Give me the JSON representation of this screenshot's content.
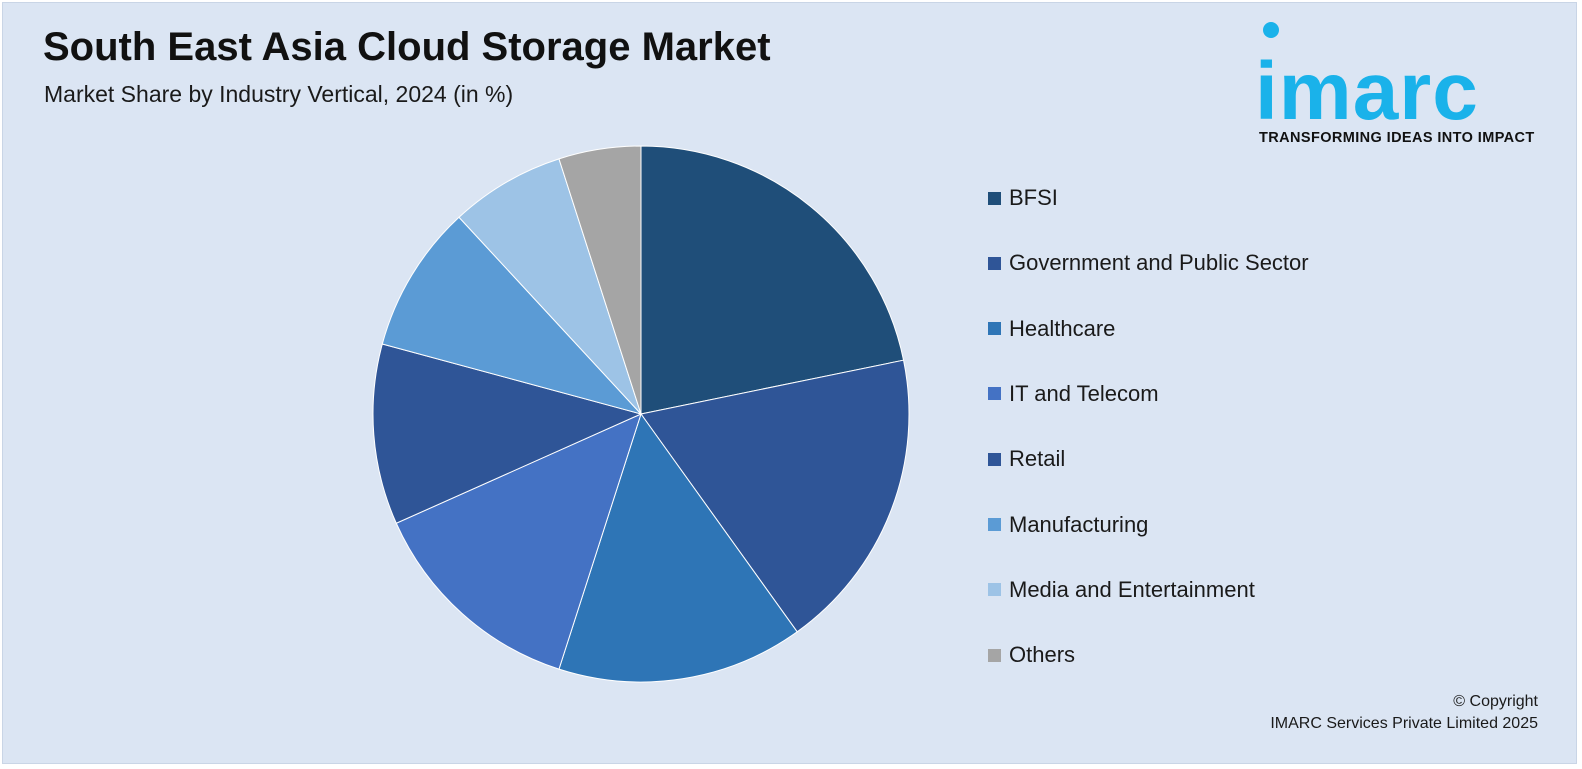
{
  "header": {
    "title": "South East Asia Cloud Storage Market",
    "subtitle": "Market Share by Industry Vertical, 2024 (in %)"
  },
  "logo": {
    "wordmark": "imarc",
    "tagline": "TRANSFORMING IDEAS INTO IMPACT",
    "color": "#1ab2ea"
  },
  "chart_data": {
    "type": "pie",
    "title": "South East Asia Cloud Storage Market",
    "subtitle": "Market Share by Industry Vertical, 2024 (in %)",
    "legend_position": "right",
    "start_angle_deg": 0,
    "direction": "clockwise",
    "categories": [
      "BFSI",
      "Government and Public Sector",
      "Healthcare",
      "IT and Telecom",
      "Retail",
      "Manufacturing",
      "Media and Entertainment",
      "Others"
    ],
    "values": [
      22,
      18.5,
      15,
      13.5,
      11,
      9,
      7,
      5
    ],
    "colors": [
      "#1f4e79",
      "#2f5597",
      "#2e75b6",
      "#4472c4",
      "#2f5597",
      "#5b9bd5",
      "#9dc3e6",
      "#a5a5a5"
    ]
  },
  "footer": {
    "copyright_line1": "© Copyright",
    "copyright_line2": "IMARC Services Private Limited 2025"
  }
}
